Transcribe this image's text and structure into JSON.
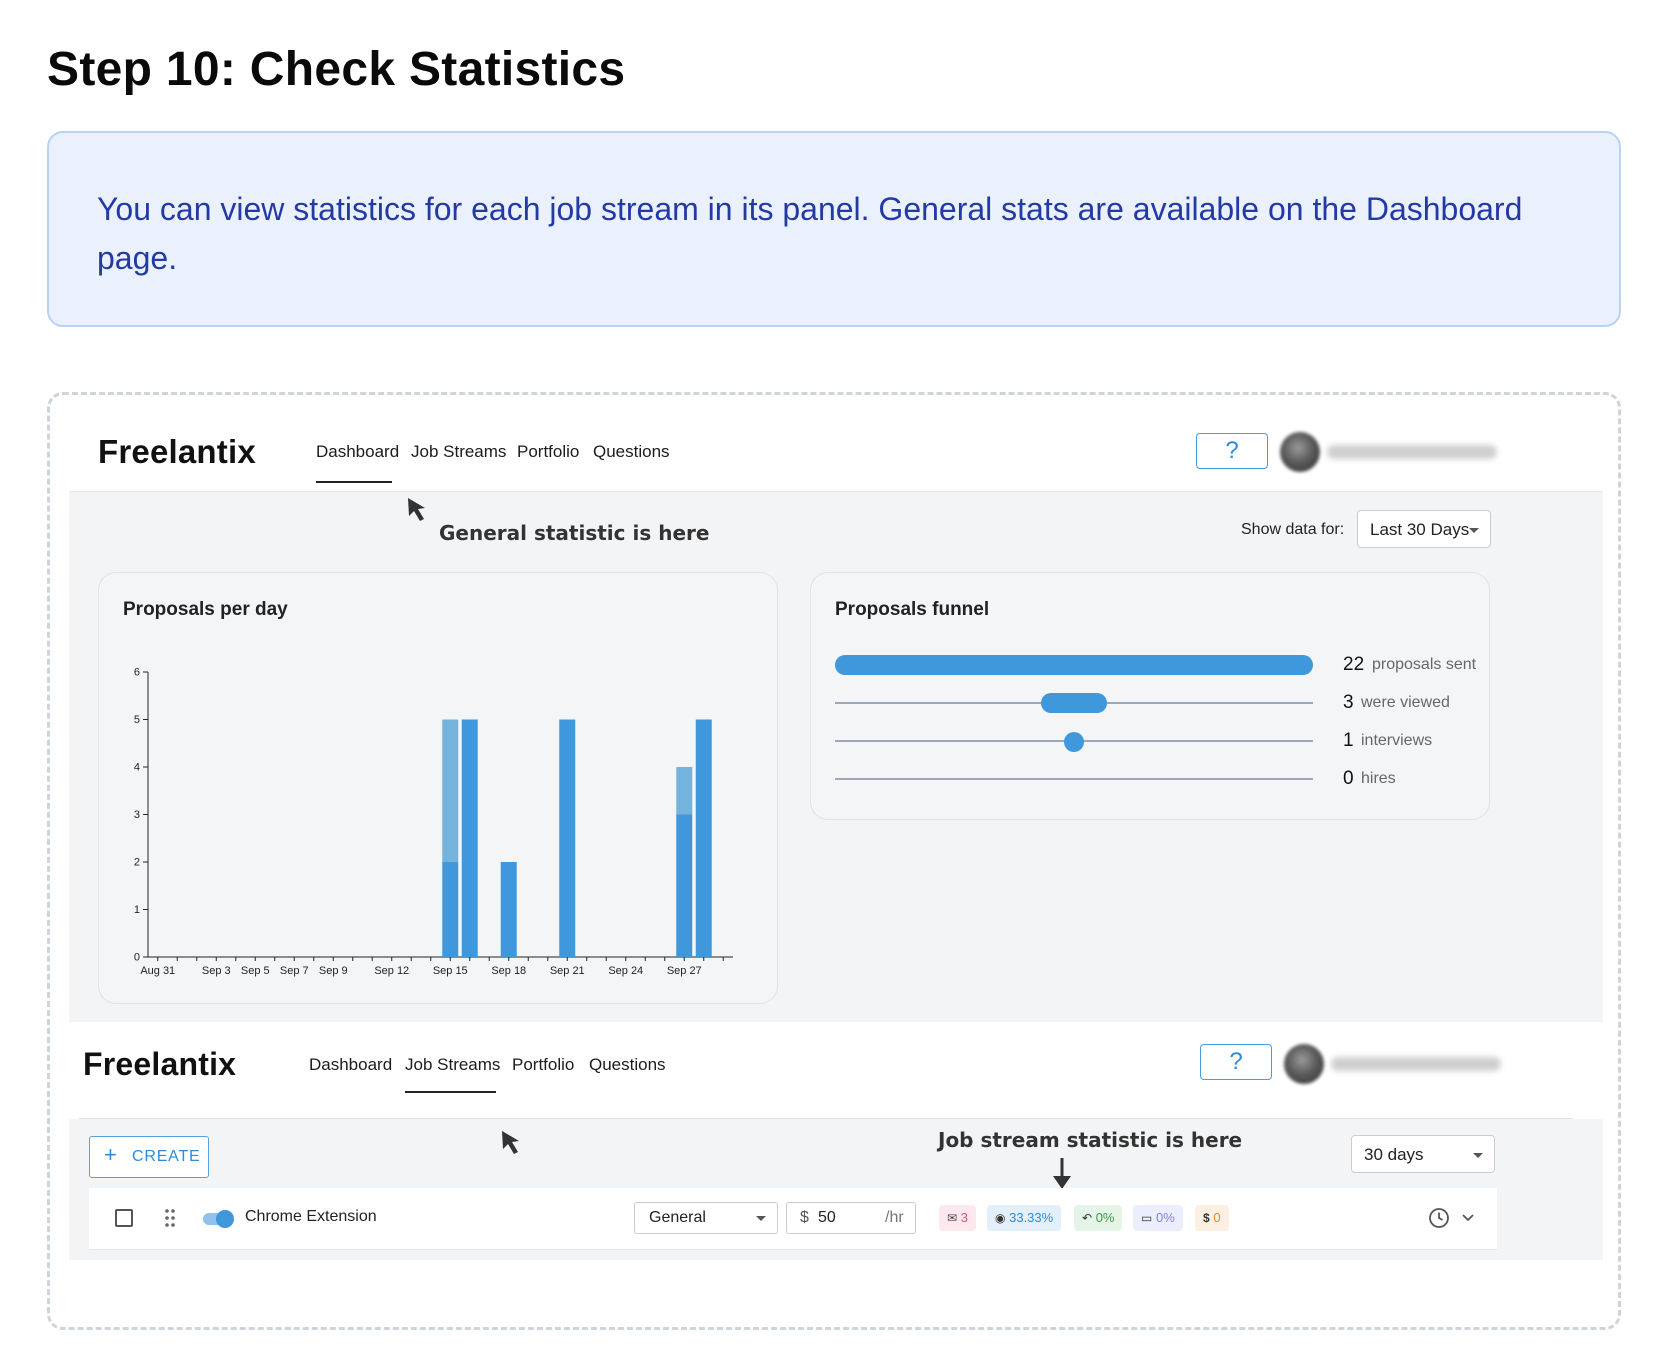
{
  "step": {
    "title": "Step 10: Check Statistics"
  },
  "info": {
    "text": "You can view statistics for each job stream in its panel. General stats are available on the Dashboard page."
  },
  "top": {
    "logo": "Freelantix",
    "nav": [
      "Dashboard",
      "Job Streams",
      "Portfolio",
      "Questions"
    ],
    "active_nav": "Dashboard",
    "help_label": "?",
    "annotation": "General statistic is here",
    "show_data_label": "Show data for:",
    "range_value": "Last 30 Days"
  },
  "proposals_chart": {
    "title": "Proposals per day"
  },
  "chart_data": {
    "type": "bar",
    "title": "Proposals per day",
    "xlabel": "",
    "ylabel": "",
    "ylim": [
      0,
      6
    ],
    "yticks": [
      0,
      1,
      2,
      3,
      4,
      5,
      6
    ],
    "xtick_labels": [
      "Aug 31",
      "Sep 3",
      "Sep 5",
      "Sep 7",
      "Sep 9",
      "Sep 12",
      "Sep 15",
      "Sep 18",
      "Sep 21",
      "Sep 24",
      "Sep 27"
    ],
    "categories": [
      "Aug 31",
      "Sep 1",
      "Sep 2",
      "Sep 3",
      "Sep 4",
      "Sep 5",
      "Sep 6",
      "Sep 7",
      "Sep 8",
      "Sep 9",
      "Sep 10",
      "Sep 11",
      "Sep 12",
      "Sep 13",
      "Sep 14",
      "Sep 15",
      "Sep 16",
      "Sep 17",
      "Sep 18",
      "Sep 19",
      "Sep 20",
      "Sep 21",
      "Sep 22",
      "Sep 23",
      "Sep 24",
      "Sep 25",
      "Sep 26",
      "Sep 27",
      "Sep 28",
      "Sep 29"
    ],
    "series": [
      {
        "name": "primary",
        "color": "#3f97dc",
        "values": [
          0,
          0,
          0,
          0,
          0,
          0,
          0,
          0,
          0,
          0,
          0,
          0,
          0,
          0,
          0,
          2,
          5,
          0,
          2,
          0,
          0,
          5,
          0,
          0,
          0,
          0,
          0,
          3,
          5,
          0
        ]
      },
      {
        "name": "secondary",
        "color": "#74b3dc",
        "values": [
          0,
          0,
          0,
          0,
          0,
          0,
          0,
          0,
          0,
          0,
          0,
          0,
          0,
          0,
          0,
          3,
          0,
          0,
          0,
          0,
          0,
          0,
          0,
          0,
          0,
          0,
          0,
          1,
          0,
          0
        ]
      }
    ]
  },
  "funnel": {
    "title": "Proposals funnel",
    "rows": [
      {
        "value": "22",
        "label": "proposals sent"
      },
      {
        "value": "3",
        "label": "were viewed"
      },
      {
        "value": "1",
        "label": "interviews"
      },
      {
        "value": "0",
        "label": "hires"
      }
    ]
  },
  "bottom": {
    "logo": "Freelantix",
    "nav": [
      "Dashboard",
      "Job Streams",
      "Portfolio",
      "Questions"
    ],
    "active_nav": "Job Streams",
    "help_label": "?",
    "create_label": "CREATE",
    "annotation": "Job stream statistic is here",
    "range_value": "30 days",
    "stream": {
      "name": "Chrome Extension",
      "category": "General",
      "currency": "$",
      "rate": "50",
      "rate_unit": "/hr",
      "stats": [
        {
          "icon": "mail-icon",
          "value": "3",
          "color": "#e0527a",
          "bg": "#fde8ee"
        },
        {
          "icon": "eye-icon",
          "value": "33.33%",
          "color": "#2f8bd8",
          "bg": "#e3f0fb"
        },
        {
          "icon": "reply-icon",
          "value": "0%",
          "color": "#3f9a4a",
          "bg": "#e4f4e6"
        },
        {
          "icon": "briefcase-icon",
          "value": "0%",
          "color": "#7b83e8",
          "bg": "#eceefd"
        },
        {
          "icon": "dollar-icon",
          "value": "0",
          "color": "#e08a2c",
          "bg": "#fdf0e2"
        }
      ]
    }
  }
}
